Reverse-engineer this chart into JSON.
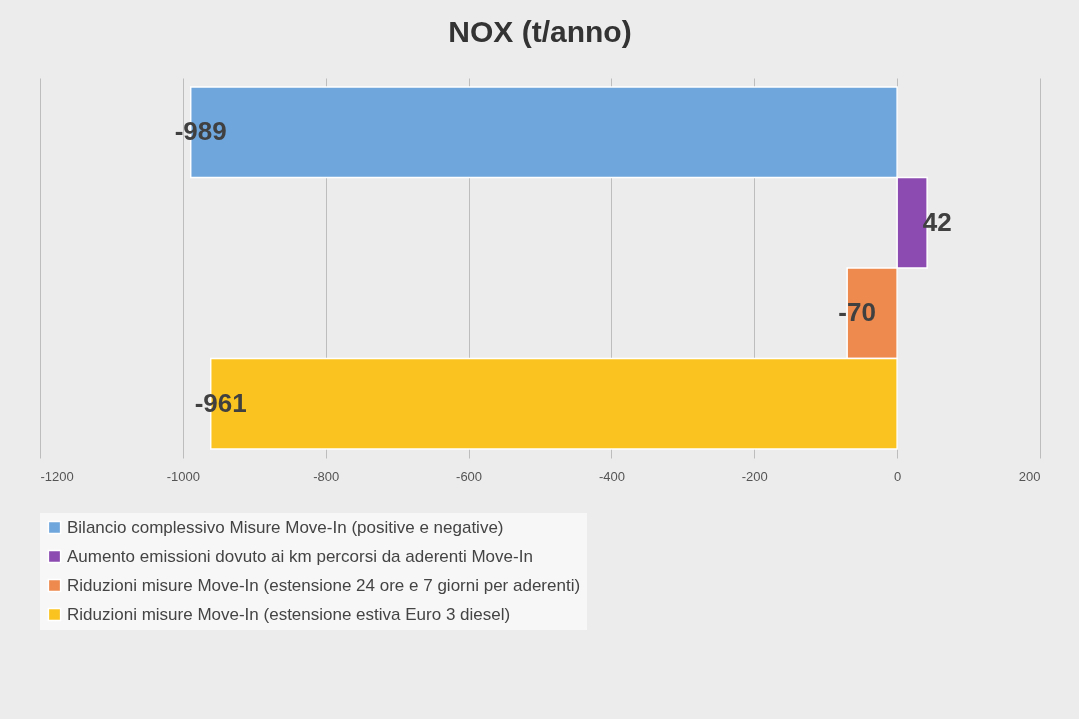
{
  "chart_data": {
    "type": "bar",
    "orientation": "horizontal",
    "title": "NOX (t/anno)",
    "categories": [
      null
    ],
    "series": [
      {
        "name": "Bilancio complessivo Misure Move-In (positive e negative)",
        "color": "#6fa6dc",
        "values": [
          -989
        ]
      },
      {
        "name": "Aumento emissioni dovuto ai km percorsi da aderenti Move-In",
        "color": "#8b4bb0",
        "values": [
          42
        ]
      },
      {
        "name": "Riduzioni misure Move-In (estensione 24 ore e 7 giorni per aderenti)",
        "color": "#ee8a4e",
        "values": [
          -70
        ]
      },
      {
        "name": "Riduzioni misure Move-In (estensione estiva Euro 3 diesel)",
        "color": "#fbc31f",
        "values": [
          -961
        ]
      }
    ],
    "xlim": [
      -1200,
      200
    ],
    "xticks": [
      -1200,
      -1000,
      -800,
      -600,
      -400,
      -200,
      0,
      200
    ],
    "grid": true,
    "legend": "bottom",
    "data_labels": true
  }
}
